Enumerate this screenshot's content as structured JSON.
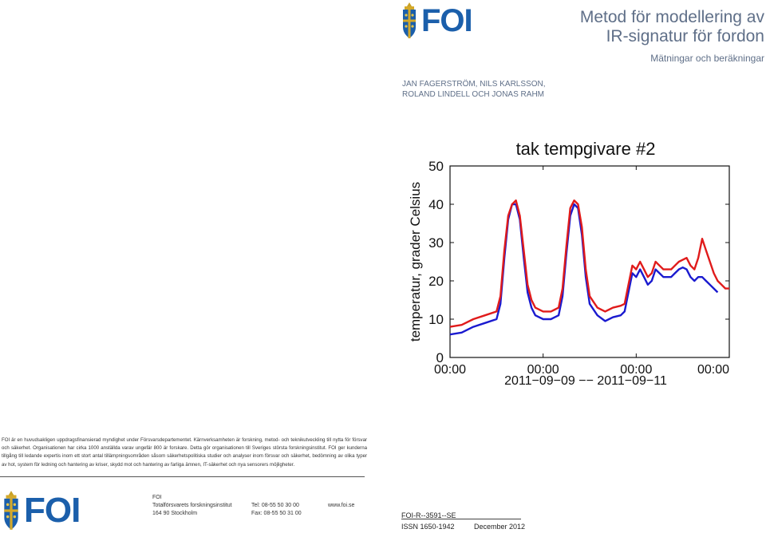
{
  "header": {
    "logo_text": "FOI",
    "title_line1": "Metod för modellering av",
    "title_line2": "IR-signatur för fordon",
    "subtitle": "Mätningar och beräkningar"
  },
  "authors": {
    "line1": "JAN FAGERSTRÖM, NILS KARLSSON,",
    "line2": "ROLAND LINDELL OCH JONAS RAHM"
  },
  "figure": {
    "chart_data": {
      "type": "line",
      "title": "tak tempgivare #2",
      "ylabel": "temperatur, grader Celsius",
      "xlabel": "2011−09−09 −− 2011−09−11",
      "ylim": [
        0,
        50
      ],
      "yticks": [
        "0",
        "10",
        "20",
        "30",
        "40",
        "50"
      ],
      "xticks": [
        "00:00",
        "00:00",
        "00:00",
        "00:00"
      ],
      "xlim_hours": [
        0,
        72
      ],
      "grid": false,
      "legend": "none",
      "series": [
        {
          "color": "#e01b1b",
          "x": [
            0,
            3,
            6,
            9,
            12,
            13,
            14,
            15,
            16,
            17,
            18,
            19,
            20,
            21,
            22,
            24,
            26,
            27,
            28,
            29,
            30,
            31,
            32,
            33,
            34,
            35,
            36,
            38,
            40,
            42,
            44,
            45,
            46,
            47,
            48,
            49,
            50,
            51,
            52,
            53,
            54,
            55,
            56,
            57,
            58,
            59,
            60,
            61,
            62,
            63,
            64,
            65,
            66,
            67,
            68,
            69,
            70,
            71,
            72
          ],
          "y": [
            8,
            8.5,
            10,
            11,
            12,
            16,
            28,
            37,
            40,
            41,
            37,
            28,
            19,
            15,
            13,
            12,
            12,
            12.5,
            13,
            18,
            29,
            39,
            41,
            40,
            34,
            23,
            16,
            13,
            12,
            13,
            13.5,
            14,
            19,
            24,
            23,
            25,
            23,
            21,
            22,
            25,
            24,
            23,
            23,
            23,
            24,
            25,
            25.5,
            26,
            24,
            23,
            26,
            31,
            28,
            25,
            22,
            20,
            19,
            18,
            18
          ]
        },
        {
          "color": "#1a1acf",
          "x": [
            0,
            3,
            6,
            9,
            12,
            13,
            14,
            15,
            16,
            17,
            18,
            19,
            20,
            21,
            22,
            24,
            26,
            27,
            28,
            29,
            30,
            31,
            32,
            33,
            34,
            35,
            36,
            38,
            40,
            42,
            44,
            45,
            46,
            47,
            48,
            49,
            50,
            51,
            52,
            53,
            54,
            55,
            56,
            57,
            58,
            59,
            60,
            61,
            62,
            63,
            64,
            65,
            66,
            67,
            68,
            69
          ],
          "y": [
            6,
            6.5,
            8,
            9,
            10,
            14,
            26,
            36,
            40,
            40,
            36,
            26,
            17,
            13,
            11,
            10,
            10,
            10.5,
            11,
            16,
            27,
            37,
            40,
            39,
            32,
            21,
            14,
            11,
            9.5,
            10.5,
            11,
            12,
            17,
            22,
            21,
            23,
            21,
            19,
            20,
            23,
            22,
            21,
            21,
            21,
            22,
            23,
            23.5,
            23,
            21,
            20,
            21,
            21,
            20,
            19,
            18,
            17
          ]
        }
      ]
    }
  },
  "body": {
    "paragraph": "FOI är en huvudsakligen uppdragsfinansierad myndighet under Försvarsdepartementet. Kärnverksamheten är forskning, metod- och teknikutveckling till nytta för försvar och säkerhet. Organisationen har cirka 1000 anställda varav ungefär 800 är forskare. Detta gör organisationen till Sveriges största forskningsinstitut. FOI ger kunderna tillgång till ledande expertis inom ett stort antal tillämpningsområden såsom säkerhetspolitiska studier och analyser inom försvar och säkerhet, bedömning av olika typer av hot, system för ledning och hantering av kriser, skydd mot och hantering av farliga ämnen, IT-säkerhet och nya sensorers möjligheter."
  },
  "footer": {
    "logo_text": "FOI",
    "org_line1": "FOI",
    "org_line2": "Totalförsvarets forskningsinstitut",
    "org_line3": "164 90 Stockholm",
    "tel": "Tel:  08-55 50 30 00",
    "fax": "Fax:  08-55 50 31 00",
    "web": "www.foi.se"
  },
  "report": {
    "number": "FOI-R--3591--SE",
    "issn": "ISSN 1650-1942",
    "date": "December  2012"
  },
  "colors": {
    "brand_blue": "#1b5fab",
    "title_gray": "#5f6f88"
  }
}
